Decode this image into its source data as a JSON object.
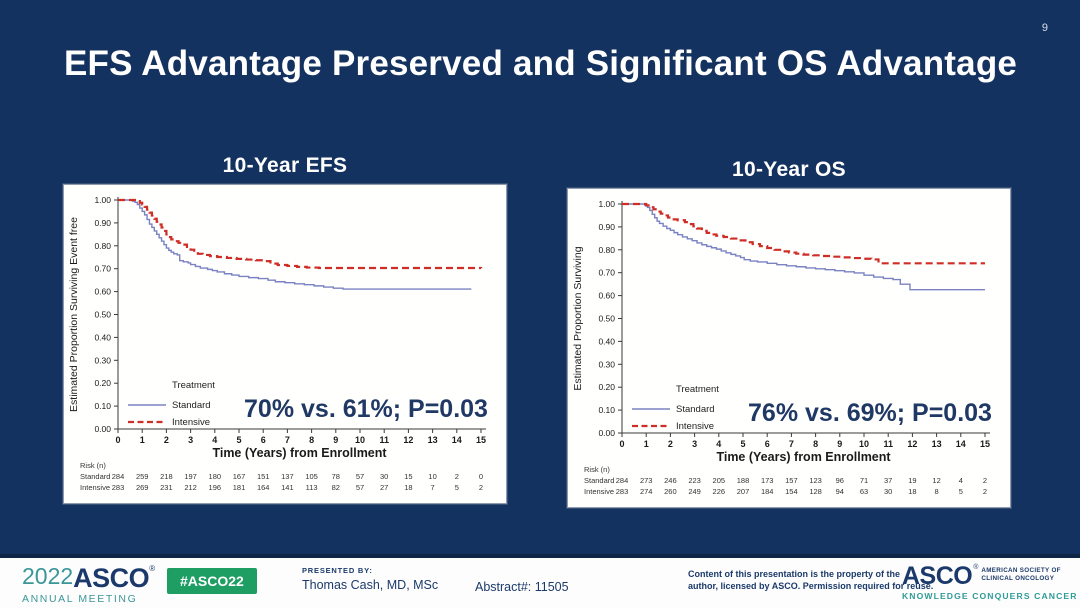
{
  "slide": {
    "page_number": "9",
    "title": "EFS Advantage Preserved and Significant OS Advantage",
    "background": "#14325f"
  },
  "colors": {
    "standard_line": "#7a82c2",
    "intensive_line": "#cf2e27",
    "annotation_text": "#1f3864",
    "axis_text": "#1a1a1a",
    "navy": "#1b3a6b",
    "teal": "#3a9697",
    "badge_green": "#1e9e63"
  },
  "chart_data": [
    {
      "type": "line",
      "subtype": "kaplan-meier-step",
      "title": "10-Year EFS",
      "ylabel": "Estimated Proportion Surviving Event free",
      "xlabel": "Time (Years) from Enrollment",
      "xlim": [
        0,
        15
      ],
      "ylim": [
        0.0,
        1.0
      ],
      "xticks": [
        0,
        1,
        2,
        3,
        4,
        5,
        6,
        7,
        8,
        9,
        10,
        11,
        12,
        13,
        14,
        15
      ],
      "yticks": [
        0.0,
        0.1,
        0.2,
        0.3,
        0.4,
        0.5,
        0.6,
        0.7,
        0.8,
        0.9,
        1.0
      ],
      "grid": false,
      "legend": {
        "title": "Treatment",
        "position": "lower-left"
      },
      "annotation": "70% vs. 61%; P=0.03",
      "series": [
        {
          "name": "Standard",
          "color": "#7a82c2",
          "dash": false,
          "points": [
            [
              0,
              1.0
            ],
            [
              0.55,
              1.0
            ],
            [
              0.6,
              0.995
            ],
            [
              0.7,
              0.99
            ],
            [
              0.8,
              0.98
            ],
            [
              0.9,
              0.965
            ],
            [
              1.0,
              0.95
            ],
            [
              1.1,
              0.935
            ],
            [
              1.2,
              0.915
            ],
            [
              1.3,
              0.895
            ],
            [
              1.4,
              0.88
            ],
            [
              1.5,
              0.865
            ],
            [
              1.6,
              0.85
            ],
            [
              1.7,
              0.835
            ],
            [
              1.8,
              0.82
            ],
            [
              1.9,
              0.805
            ],
            [
              2.0,
              0.79
            ],
            [
              2.1,
              0.78
            ],
            [
              2.2,
              0.772
            ],
            [
              2.3,
              0.765
            ],
            [
              2.45,
              0.76
            ],
            [
              2.55,
              0.735
            ],
            [
              2.7,
              0.73
            ],
            [
              2.9,
              0.725
            ],
            [
              3.0,
              0.718
            ],
            [
              3.2,
              0.71
            ],
            [
              3.4,
              0.703
            ],
            [
              3.7,
              0.697
            ],
            [
              3.9,
              0.692
            ],
            [
              4.1,
              0.686
            ],
            [
              4.4,
              0.678
            ],
            [
              4.7,
              0.672
            ],
            [
              5.0,
              0.666
            ],
            [
              5.4,
              0.661
            ],
            [
              5.8,
              0.657
            ],
            [
              6.2,
              0.65
            ],
            [
              6.5,
              0.643
            ],
            [
              6.9,
              0.639
            ],
            [
              7.3,
              0.634
            ],
            [
              7.7,
              0.63
            ],
            [
              8.1,
              0.625
            ],
            [
              8.5,
              0.62
            ],
            [
              8.9,
              0.615
            ],
            [
              9.3,
              0.611
            ],
            [
              14.6,
              0.611
            ]
          ]
        },
        {
          "name": "Intensive",
          "color": "#cf2e27",
          "dash": true,
          "points": [
            [
              0,
              1.0
            ],
            [
              0.65,
              1.0
            ],
            [
              0.75,
              0.995
            ],
            [
              0.9,
              0.988
            ],
            [
              1.0,
              0.98
            ],
            [
              1.1,
              0.97
            ],
            [
              1.2,
              0.958
            ],
            [
              1.3,
              0.945
            ],
            [
              1.4,
              0.932
            ],
            [
              1.5,
              0.918
            ],
            [
              1.6,
              0.905
            ],
            [
              1.7,
              0.893
            ],
            [
              1.8,
              0.88
            ],
            [
              1.9,
              0.865
            ],
            [
              2.0,
              0.85
            ],
            [
              2.1,
              0.838
            ],
            [
              2.2,
              0.828
            ],
            [
              2.3,
              0.82
            ],
            [
              2.5,
              0.813
            ],
            [
              2.7,
              0.805
            ],
            [
              2.85,
              0.795
            ],
            [
              3.0,
              0.783
            ],
            [
              3.15,
              0.773
            ],
            [
              3.3,
              0.765
            ],
            [
              3.5,
              0.76
            ],
            [
              3.8,
              0.755
            ],
            [
              4.1,
              0.751
            ],
            [
              4.5,
              0.747
            ],
            [
              4.9,
              0.743
            ],
            [
              5.3,
              0.74
            ],
            [
              5.7,
              0.737
            ],
            [
              6.0,
              0.733
            ],
            [
              6.3,
              0.722
            ],
            [
              6.6,
              0.716
            ],
            [
              7.0,
              0.712
            ],
            [
              7.4,
              0.708
            ],
            [
              7.8,
              0.705
            ],
            [
              8.3,
              0.703
            ],
            [
              15,
              0.702
            ]
          ]
        }
      ],
      "risk_table": {
        "label": "Risk (n)",
        "rows": [
          {
            "name": "Standard",
            "values": [
              284,
              259,
              218,
              197,
              180,
              167,
              151,
              137,
              105,
              78,
              57,
              30,
              15,
              10,
              2,
              0
            ]
          },
          {
            "name": "Intensive",
            "values": [
              283,
              269,
              231,
              212,
              196,
              181,
              164,
              141,
              113,
              82,
              57,
              27,
              18,
              7,
              5,
              2
            ]
          }
        ]
      }
    },
    {
      "type": "line",
      "subtype": "kaplan-meier-step",
      "title": "10-Year OS",
      "ylabel": "Estimated Proportion Surviving",
      "xlabel": "Time (Years) from Enrollment",
      "xlim": [
        0,
        15
      ],
      "ylim": [
        0.0,
        1.0
      ],
      "xticks": [
        0,
        1,
        2,
        3,
        4,
        5,
        6,
        7,
        8,
        9,
        10,
        11,
        12,
        13,
        14,
        15
      ],
      "yticks": [
        0.0,
        0.1,
        0.2,
        0.3,
        0.4,
        0.5,
        0.6,
        0.7,
        0.8,
        0.9,
        1.0
      ],
      "grid": false,
      "legend": {
        "title": "Treatment",
        "position": "lower-left"
      },
      "annotation": "76% vs. 69%; P=0.03",
      "series": [
        {
          "name": "Standard",
          "color": "#7a82c2",
          "dash": false,
          "points": [
            [
              0,
              1.0
            ],
            [
              0.85,
              1.0
            ],
            [
              0.95,
              0.993
            ],
            [
              1.05,
              0.985
            ],
            [
              1.15,
              0.972
            ],
            [
              1.25,
              0.955
            ],
            [
              1.35,
              0.94
            ],
            [
              1.45,
              0.925
            ],
            [
              1.55,
              0.915
            ],
            [
              1.7,
              0.903
            ],
            [
              1.85,
              0.893
            ],
            [
              2.0,
              0.885
            ],
            [
              2.15,
              0.875
            ],
            [
              2.3,
              0.866
            ],
            [
              2.5,
              0.856
            ],
            [
              2.7,
              0.848
            ],
            [
              2.9,
              0.84
            ],
            [
              3.1,
              0.83
            ],
            [
              3.3,
              0.822
            ],
            [
              3.5,
              0.815
            ],
            [
              3.7,
              0.809
            ],
            [
              3.9,
              0.803
            ],
            [
              4.1,
              0.795
            ],
            [
              4.3,
              0.787
            ],
            [
              4.5,
              0.78
            ],
            [
              4.7,
              0.773
            ],
            [
              4.9,
              0.766
            ],
            [
              5.05,
              0.757
            ],
            [
              5.3,
              0.751
            ],
            [
              5.6,
              0.747
            ],
            [
              6.0,
              0.741
            ],
            [
              6.4,
              0.735
            ],
            [
              6.8,
              0.73
            ],
            [
              7.2,
              0.726
            ],
            [
              7.6,
              0.721
            ],
            [
              8.0,
              0.717
            ],
            [
              8.4,
              0.713
            ],
            [
              8.8,
              0.709
            ],
            [
              9.2,
              0.704
            ],
            [
              9.6,
              0.699
            ],
            [
              10.0,
              0.689
            ],
            [
              10.4,
              0.681
            ],
            [
              10.8,
              0.675
            ],
            [
              11.2,
              0.67
            ],
            [
              11.5,
              0.65
            ],
            [
              11.9,
              0.626
            ],
            [
              15,
              0.626
            ]
          ]
        },
        {
          "name": "Intensive",
          "color": "#cf2e27",
          "dash": true,
          "points": [
            [
              0,
              1.0
            ],
            [
              0.9,
              1.0
            ],
            [
              1.0,
              0.994
            ],
            [
              1.15,
              0.986
            ],
            [
              1.3,
              0.977
            ],
            [
              1.45,
              0.967
            ],
            [
              1.6,
              0.958
            ],
            [
              1.75,
              0.95
            ],
            [
              1.9,
              0.941
            ],
            [
              2.05,
              0.933
            ],
            [
              2.3,
              0.929
            ],
            [
              2.6,
              0.921
            ],
            [
              2.8,
              0.912
            ],
            [
              2.95,
              0.903
            ],
            [
              3.1,
              0.893
            ],
            [
              3.3,
              0.883
            ],
            [
              3.5,
              0.874
            ],
            [
              3.7,
              0.867
            ],
            [
              3.9,
              0.861
            ],
            [
              4.2,
              0.856
            ],
            [
              4.5,
              0.849
            ],
            [
              4.8,
              0.841
            ],
            [
              5.1,
              0.833
            ],
            [
              5.4,
              0.825
            ],
            [
              5.7,
              0.816
            ],
            [
              6.0,
              0.808
            ],
            [
              6.3,
              0.8
            ],
            [
              6.6,
              0.793
            ],
            [
              6.9,
              0.788
            ],
            [
              7.2,
              0.783
            ],
            [
              7.5,
              0.779
            ],
            [
              7.9,
              0.776
            ],
            [
              8.3,
              0.773
            ],
            [
              8.7,
              0.77
            ],
            [
              9.1,
              0.767
            ],
            [
              9.5,
              0.764
            ],
            [
              9.9,
              0.761
            ],
            [
              10.3,
              0.758
            ],
            [
              10.6,
              0.741
            ],
            [
              15,
              0.741
            ]
          ]
        }
      ],
      "risk_table": {
        "label": "Risk (n)",
        "rows": [
          {
            "name": "Standard",
            "values": [
              284,
              273,
              246,
              223,
              205,
              188,
              173,
              157,
              123,
              96,
              71,
              37,
              19,
              12,
              4,
              2
            ]
          },
          {
            "name": "Intensive",
            "values": [
              283,
              274,
              260,
              249,
              226,
              207,
              184,
              154,
              128,
              94,
              63,
              30,
              18,
              8,
              5,
              2
            ]
          }
        ]
      }
    }
  ],
  "footer": {
    "meeting_logo": {
      "year": "2022",
      "org": "ASCO",
      "reg": "®",
      "sub": "ANNUAL MEETING"
    },
    "hashtag": "#ASCO22",
    "presented_by_label": "PRESENTED BY:",
    "presenter": "Thomas Cash, MD, MSc",
    "abstract": "Abstract#: 11505",
    "disclaimer_line1": "Content of this presentation is the property of the",
    "disclaimer_line2": "author, licensed by ASCO. Permission required for reuse.",
    "asco_logo": {
      "org": "ASCO",
      "reg": "®",
      "tagline1": "AMERICAN SOCIETY OF",
      "tagline2": "CLINICAL ONCOLOGY",
      "motto": "KNOWLEDGE CONQUERS CANCER"
    }
  }
}
